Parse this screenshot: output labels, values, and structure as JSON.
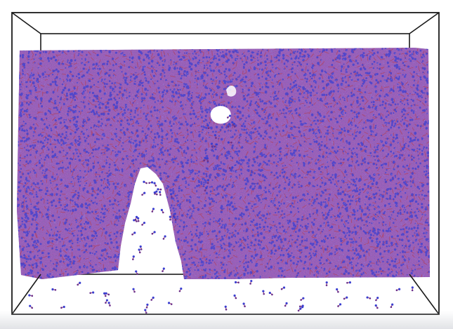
{
  "visualization": {
    "subject": "molecular-dynamics-simulation-box",
    "structure": "hydrogen-bonded-network-slab-with-crack",
    "colors": {
      "background": "#ffffff",
      "box_edges": "#1a1a1a",
      "atom_blue": "#3b3fd0",
      "atom_purple": "#6a2f8a",
      "bond_red": "#b0405a",
      "slab_base": "#4a2a6a"
    }
  }
}
